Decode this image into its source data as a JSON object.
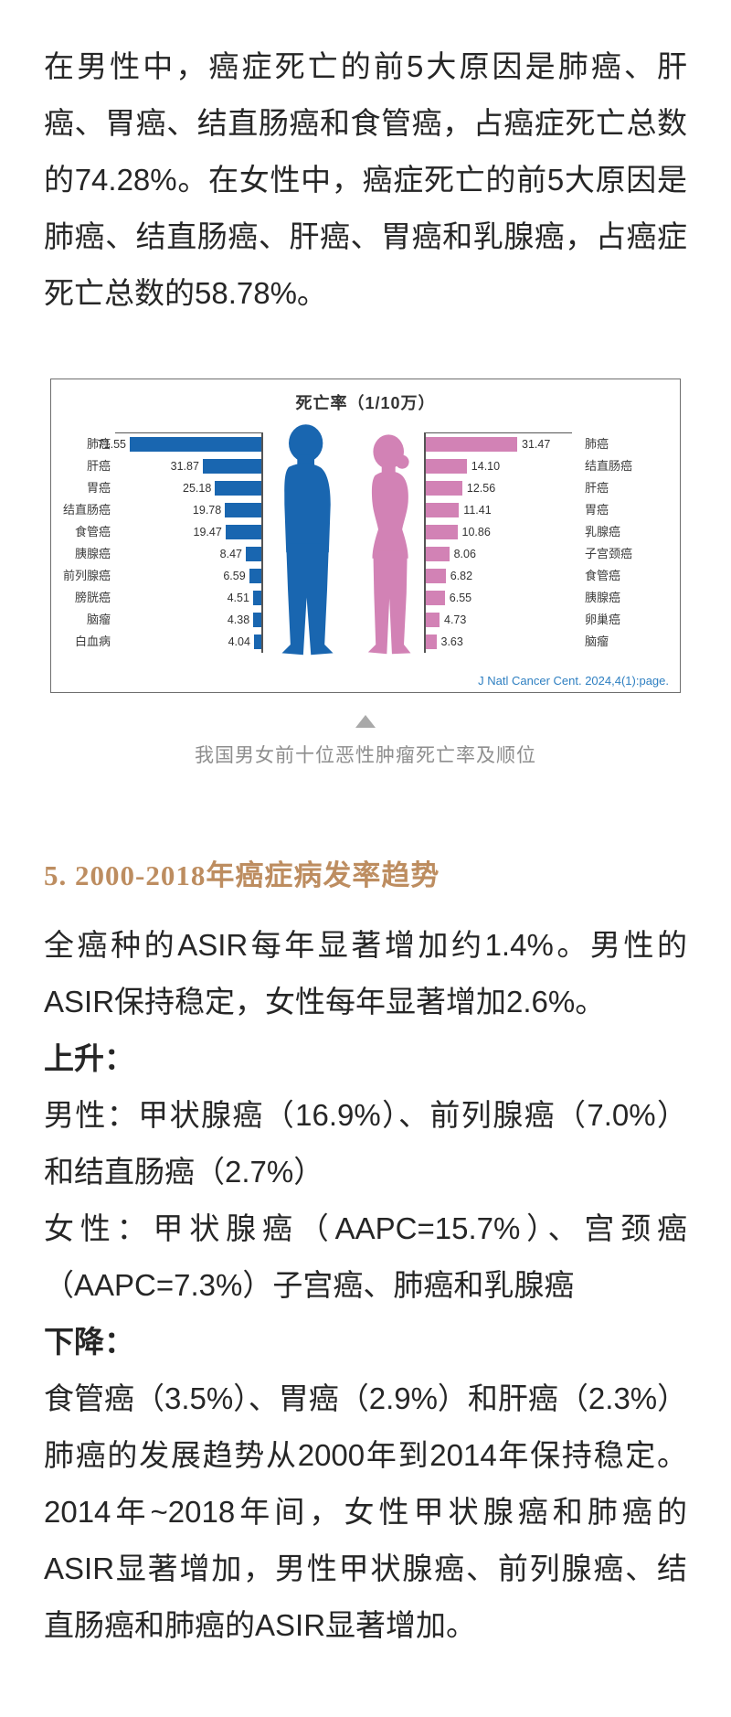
{
  "article": {
    "intro": "在男性中，癌症死亡的前5大原因是肺癌、肝癌、胃癌、结直肠癌和食管癌，占癌症死亡总数的74.28%。在女性中，癌症死亡的前5大原因是肺癌、结直肠癌、肝癌、胃癌和乳腺癌，占癌症死亡总数的58.78%。",
    "section_heading": "5. 2000-2018年癌症病发率趋势",
    "para_asir": "全癌种的ASIR每年显著增加约1.4%。男性的ASIR保持稳定，女性每年显著增加2.6%。",
    "label_up": "上升：",
    "up_male": "男性：甲状腺癌（16.9%）、前列腺癌（7.0%）和结直肠癌（2.7%）",
    "up_female": "女性：甲状腺癌（AAPC=15.7%）、宫颈癌（AAPC=7.3%）子宫癌、肺癌和乳腺癌",
    "label_down": "下降：",
    "down_items": "食管癌（3.5%）、胃癌（2.9%）和肝癌（2.3%）",
    "para_trend": "肺癌的发展趋势从2000年到2014年保持稳定。2014年~2018年间，女性甲状腺癌和肺癌的ASIR显著增加，男性甲状腺癌、前列腺癌、结直肠癌和肺癌的ASIR显著增加。"
  },
  "figure": {
    "citation": "J Natl Cancer Cent. 2024,4(1):page.",
    "caption": "我国男女前十位恶性肿瘤死亡率及顺位",
    "colors": {
      "male_bar": "#1966b0",
      "female_bar": "#d282b5",
      "citation_blue": "#2e7fc1",
      "heading_gold": "#bd8d60"
    }
  },
  "chart_data": {
    "type": "bar",
    "orientation": "horizontal-pyramid",
    "title": "死亡率（1/10万）",
    "unit": "1/10万",
    "series": [
      {
        "name": "男性",
        "color": "#1966b0",
        "categories": [
          "肺癌",
          "肝癌",
          "胃癌",
          "结直肠癌",
          "食管癌",
          "胰腺癌",
          "前列腺癌",
          "膀胱癌",
          "脑瘤",
          "白血病"
        ],
        "values": [
          71.55,
          31.87,
          25.18,
          19.78,
          19.47,
          8.47,
          6.59,
          4.51,
          4.38,
          4.04
        ]
      },
      {
        "name": "女性",
        "color": "#d282b5",
        "categories": [
          "肺癌",
          "结直肠癌",
          "肝癌",
          "胃癌",
          "乳腺癌",
          "子宫颈癌",
          "食管癌",
          "胰腺癌",
          "卵巢癌",
          "脑瘤"
        ],
        "values": [
          31.47,
          14.1,
          12.56,
          11.41,
          10.86,
          8.06,
          6.82,
          6.55,
          4.73,
          3.63
        ]
      }
    ],
    "legend_position": "none",
    "grid": false
  }
}
